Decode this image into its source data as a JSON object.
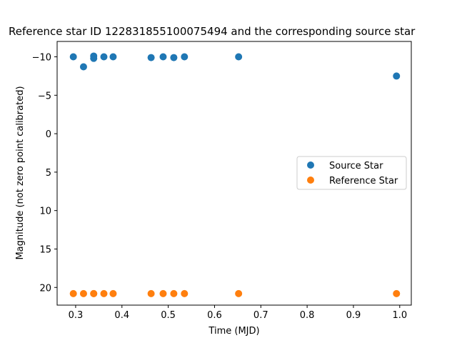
{
  "chart_data": {
    "type": "scatter",
    "title": "Reference star ID 122831855100075494 and the corresponding source star",
    "xlabel": "Time (MJD)",
    "ylabel": "Magnitude (not zero point calibrated)",
    "xlim": [
      0.26,
      1.025
    ],
    "ylim": [
      -12.0,
      22.3
    ],
    "y_inverted": true,
    "xticks": [
      0.3,
      0.4,
      0.5,
      0.6,
      0.7,
      0.8,
      0.9,
      1.0
    ],
    "xtick_labels": [
      "0.3",
      "0.4",
      "0.5",
      "0.6",
      "0.7",
      "0.8",
      "0.9",
      "1.0"
    ],
    "yticks": [
      -10,
      -5,
      0,
      5,
      10,
      15,
      20
    ],
    "ytick_labels": [
      "−10",
      "−5",
      "0",
      "5",
      "10",
      "15",
      "20"
    ],
    "grid": false,
    "legend_position": "center-right",
    "series": [
      {
        "name": "Source Star",
        "color": "#1f77b4",
        "x": [
          0.295,
          0.317,
          0.339,
          0.339,
          0.361,
          0.381,
          0.463,
          0.489,
          0.512,
          0.535,
          0.652,
          0.993
        ],
        "y": [
          -10.0,
          -8.7,
          -10.1,
          -9.8,
          -10.0,
          -10.0,
          -9.9,
          -10.0,
          -9.9,
          -10.0,
          -10.0,
          -7.5
        ]
      },
      {
        "name": "Reference Star",
        "color": "#ff7f0e",
        "x": [
          0.295,
          0.317,
          0.339,
          0.339,
          0.361,
          0.381,
          0.463,
          0.489,
          0.512,
          0.535,
          0.652,
          0.993
        ],
        "y": [
          20.8,
          20.8,
          20.8,
          20.8,
          20.8,
          20.8,
          20.8,
          20.8,
          20.8,
          20.8,
          20.8,
          20.8
        ]
      }
    ]
  }
}
